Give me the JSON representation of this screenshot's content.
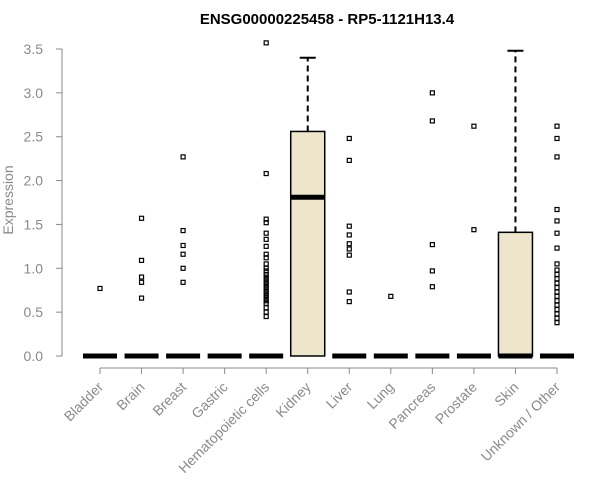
{
  "chart_data": {
    "type": "box",
    "title": "ENSG00000225458 - RP5-1121H13.4",
    "xlabel": "",
    "ylabel": "Expression",
    "ylim": [
      0,
      3.5
    ],
    "yticks": [
      "0.0",
      "0.5",
      "1.0",
      "1.5",
      "2.0",
      "2.5",
      "3.0",
      "3.5"
    ],
    "box_fill": "#ede6cc",
    "categories": [
      "Bladder",
      "Brain",
      "Breast",
      "Gastric",
      "Hematopoietic cells",
      "Kidney",
      "Liver",
      "Lung",
      "Pancreas",
      "Prostate",
      "Skin",
      "Unknown / Other"
    ],
    "boxes": [
      {
        "category": "Bladder",
        "q1": 0,
        "median": 0,
        "q3": 0,
        "whisker_low": 0,
        "whisker_high": 0,
        "outliers": [
          0.77
        ]
      },
      {
        "category": "Brain",
        "q1": 0,
        "median": 0,
        "q3": 0,
        "whisker_low": 0,
        "whisker_high": 0,
        "outliers": [
          1.57,
          1.09,
          0.9,
          0.84,
          0.66
        ]
      },
      {
        "category": "Breast",
        "q1": 0,
        "median": 0,
        "q3": 0,
        "whisker_low": 0,
        "whisker_high": 0,
        "outliers": [
          2.27,
          1.43,
          1.26,
          1.16,
          1.0,
          0.84
        ]
      },
      {
        "category": "Gastric",
        "q1": 0,
        "median": 0,
        "q3": 0,
        "whisker_low": 0,
        "whisker_high": 0,
        "outliers": []
      },
      {
        "category": "Hematopoietic cells",
        "q1": 0,
        "median": 0,
        "q3": 0,
        "whisker_low": 0,
        "whisker_high": 0,
        "outliers": [
          3.57,
          2.08,
          1.56,
          1.52,
          1.4,
          1.33,
          1.25,
          1.16,
          1.12,
          1.05,
          1.0,
          0.97,
          0.93,
          0.9,
          0.87,
          0.84,
          0.81,
          0.78,
          0.75,
          0.72,
          0.69,
          0.66,
          0.63,
          0.6,
          0.55,
          0.5,
          0.45
        ]
      },
      {
        "category": "Kidney",
        "q1": 0,
        "median": 1.81,
        "q3": 2.56,
        "whisker_low": 0,
        "whisker_high": 3.4,
        "outliers": []
      },
      {
        "category": "Liver",
        "q1": 0,
        "median": 0,
        "q3": 0,
        "whisker_low": 0,
        "whisker_high": 0,
        "outliers": [
          2.48,
          2.23,
          1.48,
          1.38,
          1.28,
          1.22,
          1.15,
          0.73,
          0.62
        ]
      },
      {
        "category": "Lung",
        "q1": 0,
        "median": 0,
        "q3": 0,
        "whisker_low": 0,
        "whisker_high": 0,
        "outliers": [
          0.68
        ]
      },
      {
        "category": "Pancreas",
        "q1": 0,
        "median": 0,
        "q3": 0,
        "whisker_low": 0,
        "whisker_high": 0,
        "outliers": [
          3.0,
          2.68,
          1.27,
          0.97,
          0.79
        ]
      },
      {
        "category": "Prostate",
        "q1": 0,
        "median": 0,
        "q3": 0,
        "whisker_low": 0,
        "whisker_high": 0,
        "outliers": [
          2.62,
          1.44
        ]
      },
      {
        "category": "Skin",
        "q1": 0,
        "median": 0,
        "q3": 1.41,
        "whisker_low": 0,
        "whisker_high": 3.48,
        "outliers": []
      },
      {
        "category": "Unknown / Other",
        "q1": 0,
        "median": 0,
        "q3": 0,
        "whisker_low": 0,
        "whisker_high": 0,
        "outliers": [
          2.62,
          2.48,
          2.27,
          1.67,
          1.54,
          1.4,
          1.23,
          1.05,
          0.98,
          0.93,
          0.88,
          0.83,
          0.78,
          0.73,
          0.68,
          0.63,
          0.58,
          0.53,
          0.48,
          0.43,
          0.38
        ]
      }
    ]
  }
}
